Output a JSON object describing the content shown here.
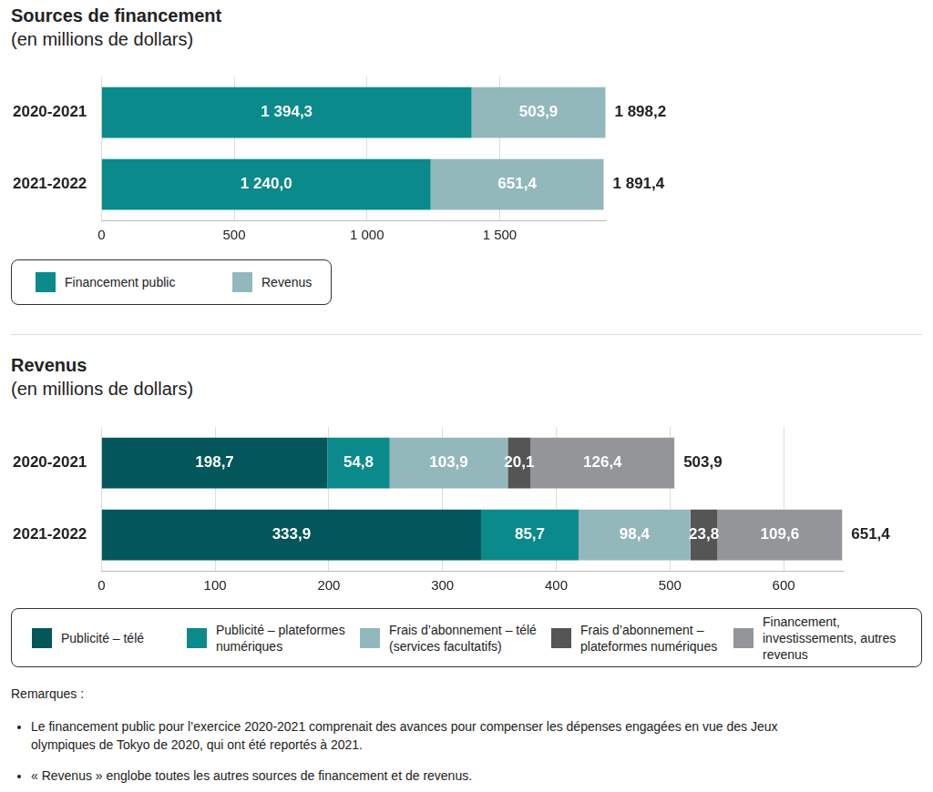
{
  "chart_data": [
    {
      "type": "bar",
      "title": "Sources de financement",
      "subtitle": "(en millions de dollars)",
      "orientation": "horizontal",
      "stacked": true,
      "data_labels": true,
      "grid": true,
      "legend": "bottom",
      "categories": [
        "2020-2021",
        "2021-2022"
      ],
      "series": [
        {
          "name": "Financement public",
          "color": "#0a8a8a",
          "values": [
            1394.3,
            1240.0
          ],
          "value_labels": [
            "1 394,3",
            "1 240,0"
          ]
        },
        {
          "name": "Revenus",
          "color": "#93b8bc",
          "values": [
            503.9,
            651.4
          ],
          "value_labels": [
            "503,9",
            "651,4"
          ]
        }
      ],
      "totals": [
        1898.2,
        1891.4
      ],
      "total_labels": [
        "1 898,2",
        "1 891,4"
      ],
      "xlim": [
        0,
        1900
      ],
      "xticks": [
        0,
        500,
        {
          "value": 1000,
          "label": "1 000"
        },
        {
          "value": 1500,
          "label": "1 500"
        }
      ]
    },
    {
      "type": "bar",
      "title": "Revenus",
      "subtitle": "(en millions de dollars)",
      "orientation": "horizontal",
      "stacked": true,
      "data_labels": true,
      "grid": true,
      "legend": "bottom",
      "categories": [
        "2020-2021",
        "2021-2022"
      ],
      "series": [
        {
          "name": "Publicité – télé",
          "color": "#03575a",
          "values": [
            198.7,
            333.9
          ],
          "value_labels": [
            "198,7",
            "333,9"
          ]
        },
        {
          "name": "Publicité – plateformes numériques",
          "color": "#0a8a8a",
          "values": [
            54.8,
            85.7
          ],
          "value_labels": [
            "54,8",
            "85,7"
          ]
        },
        {
          "name": "Frais d’abonnement – télé (services facultatifs)",
          "color": "#93b8bc",
          "values": [
            103.9,
            98.4
          ],
          "value_labels": [
            "103,9",
            "98,4"
          ]
        },
        {
          "name": "Frais d’abonnement – plateformes numériques",
          "color": "#555555",
          "values": [
            20.1,
            23.8
          ],
          "value_labels": [
            "20,1",
            "23,8"
          ]
        },
        {
          "name": "Financement, investissements, autres revenus",
          "color": "#939598",
          "values": [
            126.4,
            109.6
          ],
          "value_labels": [
            "126,4",
            "109,6"
          ]
        }
      ],
      "totals": [
        503.9,
        651.4
      ],
      "total_labels": [
        "503,9",
        "651,4"
      ],
      "xlim": [
        0,
        652
      ],
      "xticks": [
        0,
        100,
        200,
        300,
        400,
        500,
        600
      ]
    }
  ],
  "notes": {
    "title": "Remarques :",
    "items": [
      "Le financement public pour l’exercice 2020-2021 comprenait des avances pour compenser les dépenses engagées en vue des Jeux olympiques de Tokyo de 2020, qui ont été reportés à 2021.",
      "« Revenus » englobe toutes les autres sources de financement et de revenus."
    ]
  }
}
